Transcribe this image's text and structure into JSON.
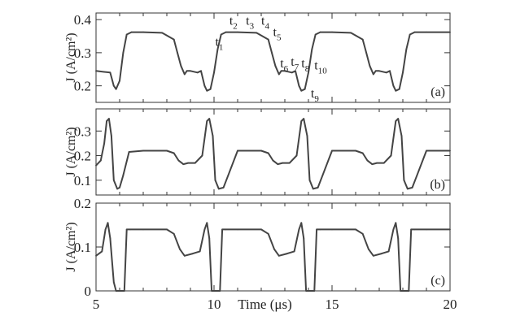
{
  "chart_data": [
    {
      "type": "line",
      "panel_label": "(a)",
      "ylabel": "J (A/cm²)",
      "ylim": [
        0.15,
        0.42
      ],
      "yticks": [
        0.2,
        0.3,
        0.4
      ],
      "ytick_labels": [
        "0.2",
        "0.3",
        "0.4"
      ],
      "xlim": [
        5,
        20
      ],
      "series": [
        {
          "x": [
            5.0,
            5.6,
            5.75,
            5.85,
            6.0,
            6.15,
            6.3,
            6.5,
            7.0,
            7.8,
            8.3,
            8.45,
            8.6,
            8.75,
            8.85,
            9.0,
            9.3,
            9.45,
            9.6,
            9.7,
            9.85,
            10.0,
            10.15,
            10.3,
            10.5,
            11.0,
            11.8,
            12.3,
            12.45,
            12.6,
            12.75,
            12.85,
            13.0,
            13.3,
            13.45,
            13.6,
            13.7,
            13.85,
            14.0,
            14.15,
            14.3,
            14.5,
            15.0,
            15.8,
            16.3,
            16.45,
            16.6,
            16.75,
            16.85,
            17.0,
            17.3,
            17.45,
            17.6,
            17.7,
            17.85,
            18.0,
            18.15,
            18.3,
            18.5,
            19.0,
            20.0
          ],
          "y": [
            0.245,
            0.24,
            0.2,
            0.19,
            0.215,
            0.3,
            0.355,
            0.362,
            0.362,
            0.36,
            0.34,
            0.3,
            0.26,
            0.235,
            0.245,
            0.245,
            0.24,
            0.245,
            0.2,
            0.185,
            0.19,
            0.24,
            0.31,
            0.355,
            0.362,
            0.362,
            0.36,
            0.34,
            0.3,
            0.26,
            0.235,
            0.245,
            0.245,
            0.24,
            0.245,
            0.2,
            0.185,
            0.19,
            0.24,
            0.31,
            0.355,
            0.362,
            0.362,
            0.36,
            0.34,
            0.3,
            0.26,
            0.235,
            0.245,
            0.245,
            0.24,
            0.245,
            0.2,
            0.185,
            0.19,
            0.24,
            0.31,
            0.355,
            0.362,
            0.362,
            0.362
          ]
        }
      ],
      "annotations": [
        {
          "base": "t",
          "sub": "1",
          "x": 10.05,
          "y": 0.32
        },
        {
          "base": "t",
          "sub": "2",
          "x": 10.65,
          "y": 0.385
        },
        {
          "base": "t",
          "sub": "3",
          "x": 11.35,
          "y": 0.385
        },
        {
          "base": "t",
          "sub": "4",
          "x": 12.0,
          "y": 0.385
        },
        {
          "base": "t",
          "sub": "5",
          "x": 12.5,
          "y": 0.35
        },
        {
          "base": "t",
          "sub": "6",
          "x": 12.8,
          "y": 0.255
        },
        {
          "base": "t",
          "sub": "7",
          "x": 13.25,
          "y": 0.26
        },
        {
          "base": "t",
          "sub": "8",
          "x": 13.7,
          "y": 0.255
        },
        {
          "base": "t",
          "sub": "9",
          "x": 14.1,
          "y": 0.165
        },
        {
          "base": "t",
          "sub": "10",
          "x": 14.25,
          "y": 0.25
        }
      ]
    },
    {
      "type": "line",
      "panel_label": "(b)",
      "ylabel": "J (A/cm²)",
      "ylim": [
        0.04,
        0.39
      ],
      "yticks": [
        0.1,
        0.2,
        0.3
      ],
      "ytick_labels": [
        "0.1",
        "0.2",
        "0.3"
      ],
      "xlim": [
        5,
        20
      ],
      "series": [
        {
          "x": [
            5.0,
            5.2,
            5.35,
            5.45,
            5.55,
            5.65,
            5.75,
            5.9,
            6.0,
            6.15,
            6.4,
            7.0,
            8.0,
            8.3,
            8.5,
            8.7,
            8.9,
            9.2,
            9.5,
            9.7,
            9.8,
            9.95,
            10.05,
            10.2,
            10.4,
            10.6,
            11.0,
            12.0,
            12.3,
            12.5,
            12.7,
            12.9,
            13.2,
            13.5,
            13.7,
            13.8,
            13.95,
            14.05,
            14.2,
            14.4,
            14.6,
            15.0,
            16.0,
            16.3,
            16.5,
            16.7,
            16.9,
            17.2,
            17.5,
            17.7,
            17.8,
            17.95,
            18.05,
            18.2,
            18.4,
            18.6,
            19.0,
            20.0
          ],
          "y": [
            0.16,
            0.18,
            0.25,
            0.34,
            0.35,
            0.28,
            0.1,
            0.065,
            0.07,
            0.12,
            0.215,
            0.22,
            0.22,
            0.21,
            0.18,
            0.165,
            0.17,
            0.17,
            0.2,
            0.34,
            0.35,
            0.28,
            0.1,
            0.065,
            0.07,
            0.12,
            0.22,
            0.22,
            0.21,
            0.18,
            0.165,
            0.17,
            0.17,
            0.2,
            0.34,
            0.35,
            0.28,
            0.1,
            0.065,
            0.07,
            0.12,
            0.22,
            0.22,
            0.21,
            0.18,
            0.165,
            0.17,
            0.17,
            0.2,
            0.34,
            0.35,
            0.28,
            0.1,
            0.065,
            0.07,
            0.12,
            0.22,
            0.22
          ]
        }
      ]
    },
    {
      "type": "line",
      "panel_label": "(c)",
      "ylabel": "J (A/cm²)",
      "ylim": [
        0.0,
        0.2
      ],
      "yticks": [
        0.0,
        0.1,
        0.2
      ],
      "ytick_labels": [
        "0",
        "0.1",
        "0.2"
      ],
      "xlim": [
        5,
        20
      ],
      "xticks": [
        5,
        10,
        15,
        20
      ],
      "xtick_labels": [
        "5",
        "10",
        "15",
        "20"
      ],
      "xlabel": "Time (μs)",
      "series": [
        {
          "x": [
            5.0,
            5.25,
            5.4,
            5.5,
            5.6,
            5.75,
            5.85,
            6.2,
            6.3,
            6.45,
            7.0,
            8.0,
            8.3,
            8.55,
            8.75,
            9.1,
            9.4,
            9.6,
            9.7,
            9.8,
            9.9,
            10.25,
            10.35,
            10.5,
            11.0,
            12.0,
            12.3,
            12.55,
            12.75,
            13.1,
            13.4,
            13.6,
            13.7,
            13.8,
            13.9,
            14.25,
            14.35,
            14.5,
            15.0,
            16.0,
            16.3,
            16.55,
            16.75,
            17.1,
            17.4,
            17.6,
            17.7,
            17.8,
            17.9,
            18.25,
            18.35,
            18.5,
            19.0,
            20.0
          ],
          "y": [
            0.08,
            0.09,
            0.14,
            0.155,
            0.12,
            0.02,
            0.0,
            0.0,
            0.14,
            0.14,
            0.14,
            0.14,
            0.13,
            0.095,
            0.08,
            0.085,
            0.09,
            0.14,
            0.155,
            0.12,
            0.0,
            0.0,
            0.14,
            0.14,
            0.14,
            0.14,
            0.13,
            0.095,
            0.08,
            0.085,
            0.09,
            0.14,
            0.155,
            0.12,
            0.0,
            0.0,
            0.14,
            0.14,
            0.14,
            0.14,
            0.13,
            0.095,
            0.08,
            0.085,
            0.09,
            0.14,
            0.155,
            0.12,
            0.0,
            0.0,
            0.14,
            0.14,
            0.14,
            0.14
          ]
        }
      ]
    }
  ]
}
